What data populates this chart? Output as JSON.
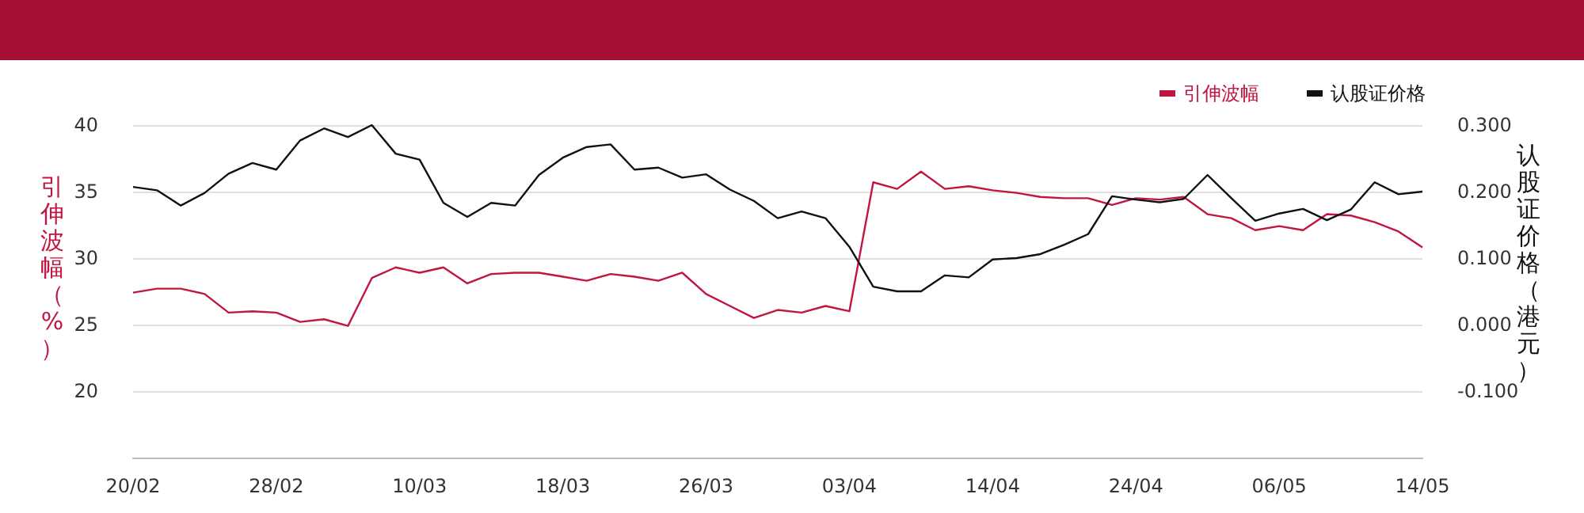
{
  "chart_data": {
    "type": "line",
    "ylabel": "引伸波幅（%）",
    "y2label": "认股证价格（港元）",
    "categories": [
      "20/02",
      null,
      null,
      null,
      null,
      null,
      "28/02",
      null,
      null,
      null,
      null,
      null,
      "10/03",
      null,
      null,
      null,
      null,
      null,
      "18/03",
      null,
      null,
      null,
      null,
      null,
      "26/03",
      null,
      null,
      null,
      null,
      null,
      "03/04",
      null,
      null,
      null,
      null,
      null,
      "14/04",
      null,
      null,
      null,
      null,
      null,
      "24/04",
      null,
      null,
      null,
      null,
      null,
      "06/05",
      null,
      null,
      null,
      null,
      null,
      "14/05"
    ],
    "series": [
      {
        "name": "引伸波幅",
        "color": "#c0163f",
        "values": [
          27.4,
          27.7,
          27.7,
          27.3,
          25.9,
          26.0,
          25.9,
          25.2,
          25.4,
          24.9,
          28.5,
          29.3,
          28.9,
          29.3,
          28.1,
          28.8,
          28.9,
          28.9,
          28.6,
          28.3,
          28.8,
          28.6,
          28.3,
          28.9,
          27.3,
          26.4,
          25.5,
          26.1,
          25.9,
          26.4,
          26.0,
          35.7,
          35.2,
          36.5,
          35.2,
          35.4,
          35.1,
          34.9,
          34.6,
          34.5,
          34.5,
          34.0,
          34.5,
          34.4,
          34.6,
          33.3,
          33.0,
          32.1,
          32.4,
          32.1,
          33.3,
          33.2,
          32.7,
          32.0,
          30.8
        ]
      },
      {
        "name": "认股证价格",
        "color": "#111111",
        "axis": "y2",
        "values": [
          0.207,
          0.202,
          0.179,
          0.198,
          0.227,
          0.243,
          0.233,
          0.277,
          0.295,
          0.282,
          0.3,
          0.257,
          0.248,
          0.183,
          0.162,
          0.183,
          0.179,
          0.225,
          0.251,
          0.267,
          0.271,
          0.233,
          0.236,
          0.221,
          0.226,
          0.203,
          0.186,
          0.16,
          0.17,
          0.16,
          0.117,
          0.057,
          0.05,
          0.05,
          0.074,
          0.071,
          0.098,
          0.1,
          0.106,
          0.12,
          0.136,
          0.193,
          0.188,
          0.184,
          0.189,
          0.225,
          0.19,
          0.156,
          0.167,
          0.174,
          0.157,
          0.173,
          0.214,
          0.196,
          0.2
        ]
      }
    ],
    "ylim": [
      15,
      40
    ],
    "yticks": [
      20,
      25,
      30,
      35,
      40
    ],
    "y2lim": [
      -0.2,
      0.3
    ],
    "y2ticks": [
      {
        "value": -0.1,
        "label": "-0.100"
      },
      {
        "value": 0,
        "label": "0.000"
      },
      {
        "value": 0.1,
        "label": "0.100"
      },
      {
        "value": 0.2,
        "label": "0.200"
      },
      {
        "value": 0.3,
        "label": "0.300"
      }
    ],
    "grid": "y",
    "legend": "top right",
    "marker": "none",
    "line_style": "solid"
  }
}
